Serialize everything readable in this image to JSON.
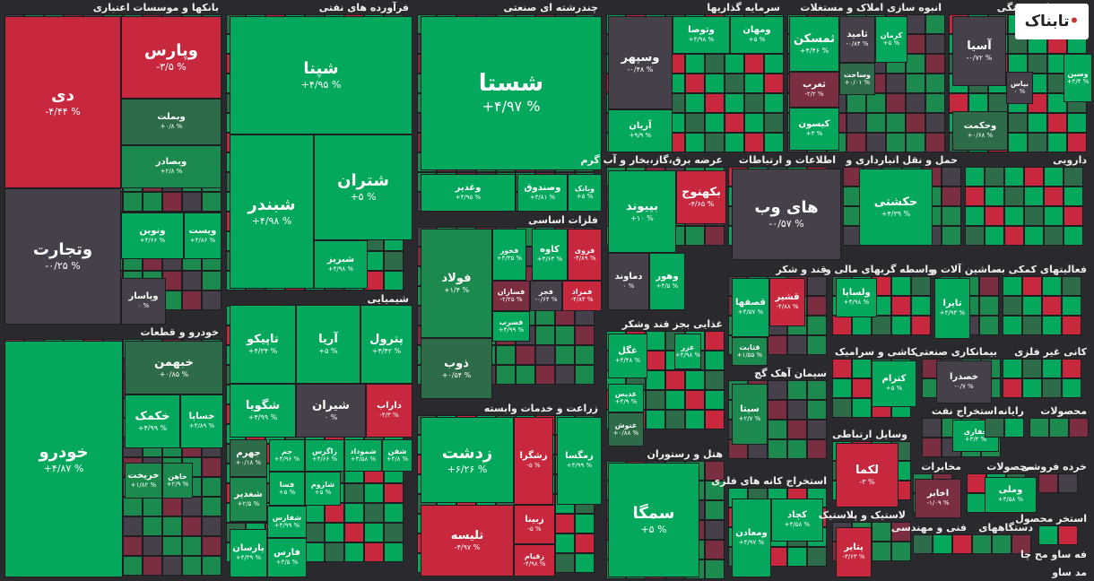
{
  "chart_data": {
    "type": "treemap",
    "colors": {
      "strong_green": "#04a85c",
      "green": "#1c8a4e",
      "dim_green": "#2e6b48",
      "neutral": "#45404a",
      "dim_red": "#7a2e40",
      "red": "#c8283e",
      "bg": "#2a2a2e"
    },
    "sectors": [
      {
        "name": "بانکها و موسسات اعتباری",
        "tiles": [
          {
            "name": "دی",
            "change": "-۴/۴۴ %"
          },
          {
            "name": "وپارس",
            "change": "-۳/۵ %"
          },
          {
            "name": "وبملت",
            "change": "+۰/۸ %"
          },
          {
            "name": "وبصادر",
            "change": "+۲/۸ %"
          },
          {
            "name": "وتجارت",
            "change": "-۰/۲۵ %"
          },
          {
            "name": "ونوین",
            "change": "+۴/۶۶ %"
          },
          {
            "name": "ویست",
            "change": "+۴/۸۶ %"
          },
          {
            "name": "وپاسار",
            "change": "۰ %"
          }
        ]
      },
      {
        "name": "فرآورده های نفتی",
        "tiles": [
          {
            "name": "شپنا",
            "change": "+۴/۹۵ %"
          },
          {
            "name": "شبندر",
            "change": "+۴/۹۸ %"
          },
          {
            "name": "شتران",
            "change": "+۵ %"
          },
          {
            "name": "شبریز",
            "change": "+۴/۹۸ %"
          }
        ]
      },
      {
        "name": "چندرشته ای صنعتی",
        "tiles": [
          {
            "name": "شستا",
            "change": "+۴/۹۷ %"
          },
          {
            "name": "وغدیر",
            "change": "+۴/۹۵ %"
          },
          {
            "name": "وصندوق",
            "change": "+۳/۸۱ %"
          },
          {
            "name": "وبانک",
            "change": "+۵ %"
          }
        ]
      },
      {
        "name": "سرمایه گذاریها",
        "tiles": [
          {
            "name": "وسپهر",
            "change": "-۰/۴۸ %"
          },
          {
            "name": "وتوصا",
            "change": "+۴/۹۸ %"
          },
          {
            "name": "ومهان",
            "change": "+۵ %"
          },
          {
            "name": "آریان",
            "change": "+۹/۹ %"
          }
        ]
      },
      {
        "name": "انبوه سازی املاک و مستغلات",
        "tiles": [
          {
            "name": "ثمسکن",
            "change": "+۴/۴۶ %"
          },
          {
            "name": "ثامید",
            "change": "-۰/۸۴ %"
          },
          {
            "name": "کرمان",
            "change": "+۵ %"
          },
          {
            "name": "وساخت",
            "change": "+۰/۰۱ %"
          },
          {
            "name": "ثغرب",
            "change": "-۲/۲ %"
          },
          {
            "name": "کیسون",
            "change": "+۳ %"
          }
        ]
      },
      {
        "name": "بیمه و بازنشستگی",
        "tiles": [
          {
            "name": "آسیا",
            "change": "-۰/۷۲ %"
          },
          {
            "name": "بیاس",
            "change": "۰ %"
          },
          {
            "name": "وسین",
            "change": "+۴/۴ %"
          },
          {
            "name": "وحکمت",
            "change": "+۰/۶۸ %"
          }
        ]
      },
      {
        "name": "خودرو و قطعات",
        "tiles": [
          {
            "name": "خودرو",
            "change": "+۴/۸۷ %"
          },
          {
            "name": "خبهمن",
            "change": "+۰/۸۵ %"
          },
          {
            "name": "خکمک",
            "change": "+۴/۹۹ %"
          },
          {
            "name": "خساپا",
            "change": "+۴/۸۹ %"
          },
          {
            "name": "خریخت",
            "change": "+۱/۸۲ %"
          },
          {
            "name": "خاهن",
            "change": "+۲/۹ %"
          }
        ]
      },
      {
        "name": "شیمیایی",
        "tiles": [
          {
            "name": "تاپیکو",
            "change": "+۴/۳۴ %"
          },
          {
            "name": "آریا",
            "change": "+۵ %"
          },
          {
            "name": "پترول",
            "change": "+۴/۴۲ %"
          },
          {
            "name": "شگویا",
            "change": "+۴/۹۹ %"
          },
          {
            "name": "شیران",
            "change": "۰ %"
          },
          {
            "name": "داراب",
            "change": "-۴/۳ %"
          },
          {
            "name": "جهرم",
            "change": "+۰/۱۸ %"
          },
          {
            "name": "جم",
            "change": "+۴/۹۶ %"
          },
          {
            "name": "زاگرس",
            "change": "+۴/۶۶ %"
          },
          {
            "name": "شموداد",
            "change": "+۴/۵۸ %"
          },
          {
            "name": "شفن",
            "change": "+۴/۸ %"
          },
          {
            "name": "فسا",
            "change": "+۵ %"
          },
          {
            "name": "شاروم",
            "change": "+۵ %"
          },
          {
            "name": "شغدیر",
            "change": "+۲/۵ %"
          },
          {
            "name": "شفارس",
            "change": "+۴/۹۹ %"
          },
          {
            "name": "پارسان",
            "change": "+۴/۳۹ %"
          },
          {
            "name": "فارس",
            "change": "+۳/۵ %"
          }
        ]
      },
      {
        "name": "فلزات اساسی",
        "tiles": [
          {
            "name": "فولاد",
            "change": "+۱/۴ %"
          },
          {
            "name": "فخوز",
            "change": "+۴/۳۵ %"
          },
          {
            "name": "کاوه",
            "change": "+۴/۶۳ %"
          },
          {
            "name": "فروی",
            "change": "-۴/۸۹ %"
          },
          {
            "name": "فسازان",
            "change": "-۲/۲۵ %"
          },
          {
            "name": "فجر",
            "change": "-۰/۶۴ %"
          },
          {
            "name": "فمراد",
            "change": "-۴/۸۳ %"
          },
          {
            "name": "فسرب",
            "change": "+۴/۹۹ %"
          },
          {
            "name": "ذوب",
            "change": "+۰/۵۴ %"
          }
        ]
      },
      {
        "name": "زراعت و خدمات وابسته",
        "tiles": [
          {
            "name": "زدشت",
            "change": "+۶/۲۶ %"
          },
          {
            "name": "زشگزا",
            "change": "-۵ %"
          },
          {
            "name": "زمگسا",
            "change": "+۴/۹۹ %"
          },
          {
            "name": "زبینا",
            "change": "-۵ %"
          },
          {
            "name": "تلیسه",
            "change": "-۴/۹۷ %"
          },
          {
            "name": "زقیام",
            "change": "-۴/۹۸ %"
          }
        ]
      },
      {
        "name": "عرضه برق،گاز،بخار و آب گرم",
        "tiles": [
          {
            "name": "بپیوند",
            "change": "+۱۰ %"
          },
          {
            "name": "بکهنوج",
            "change": "-۴/۶۵ %"
          },
          {
            "name": "وهور",
            "change": "+۴/۵ %"
          },
          {
            "name": "دماوند",
            "change": "۰ %"
          }
        ]
      },
      {
        "name": "غذایی بجز قند وشکر",
        "tiles": [
          {
            "name": "غگل",
            "change": "+۴/۴۸ %"
          },
          {
            "name": "غزر",
            "change": "+۴/۹۸ %"
          },
          {
            "name": "غدیس",
            "change": "+۴/۹ %"
          },
          {
            "name": "غنوش",
            "change": "+۰/۸۸ %"
          }
        ]
      },
      {
        "name": "هتل و رستوران",
        "tiles": [
          {
            "name": "سمگا",
            "change": "+۵ %"
          }
        ]
      },
      {
        "name": "اطلاعات و ارتباطات",
        "tiles": [
          {
            "name": "های وب",
            "change": "-۰/۵۷ %"
          }
        ]
      },
      {
        "name": "حمل و نقل انبارداری و",
        "tiles": [
          {
            "name": "حکشتی",
            "change": "+۴/۳۹ %"
          }
        ]
      },
      {
        "name": "دارویی",
        "tiles": []
      },
      {
        "name": "قند و شکر",
        "tiles": [
          {
            "name": "قصفها",
            "change": "+۴/۵۷ %"
          },
          {
            "name": "قشیر",
            "change": "-۴/۸۸ %"
          },
          {
            "name": "قثابت",
            "change": "+۱/۵۵ %"
          }
        ]
      },
      {
        "name": "واسطه گریهای مالی و",
        "tiles": [
          {
            "name": "ولساپا",
            "change": "+۴/۹۸ %"
          }
        ]
      },
      {
        "name": "ماشین آلات و",
        "tiles": [
          {
            "name": "تایرا",
            "change": "+۴/۹۳ %"
          }
        ]
      },
      {
        "name": "فعالیتهای کمکی به",
        "tiles": []
      },
      {
        "name": "سیمان آهک گچ",
        "tiles": [
          {
            "name": "سیتا",
            "change": "+۲/۷ %"
          }
        ]
      },
      {
        "name": "کاشی و سرامیک",
        "tiles": [
          {
            "name": "کترام",
            "change": "+۵ %"
          }
        ]
      },
      {
        "name": "بیمانکاری صنعتی",
        "tiles": [
          {
            "name": "خصدرا",
            "change": "-۰/۷ %"
          }
        ]
      },
      {
        "name": "کانی غیر فلزی",
        "tiles": []
      },
      {
        "name": "استخراج نفت",
        "tiles": [
          {
            "name": "حفاری",
            "change": "+۳/۴ %"
          }
        ]
      },
      {
        "name": "رایانه",
        "tiles": []
      },
      {
        "name": "محصولات",
        "tiles": []
      },
      {
        "name": "وسایل ارتباطی",
        "tiles": [
          {
            "name": "لکما",
            "change": "-۳ %"
          }
        ]
      },
      {
        "name": "مخابرات",
        "tiles": [
          {
            "name": "اخابر",
            "change": "-۱/۰۹ %"
          }
        ]
      },
      {
        "name": "محصولات",
        "tiles": [
          {
            "name": "وملی",
            "change": "+۴/۵۸ %"
          }
        ]
      },
      {
        "name": "خرده فروشی",
        "tiles": []
      },
      {
        "name": "استخراج کانه های فلزی",
        "tiles": [
          {
            "name": "ومعادن",
            "change": "+۴/۹۷ %"
          },
          {
            "name": "کچاد",
            "change": "+۴/۵۸ %"
          }
        ]
      },
      {
        "name": "لاستیک و پلاستیک",
        "tiles": [
          {
            "name": "پتایر",
            "change": "-۳/۶۳ %"
          }
        ]
      },
      {
        "name": "فنی و مهندسی",
        "tiles": []
      },
      {
        "name": "دستگاههای",
        "tiles": []
      },
      {
        "name": "استخر محصول",
        "tiles": []
      },
      {
        "name": "فه ساو مح چا",
        "tiles": []
      },
      {
        "name": "مد ساو",
        "tiles": []
      }
    ],
    "logo": {
      "brand": "تابناک",
      "dot": "•"
    }
  }
}
